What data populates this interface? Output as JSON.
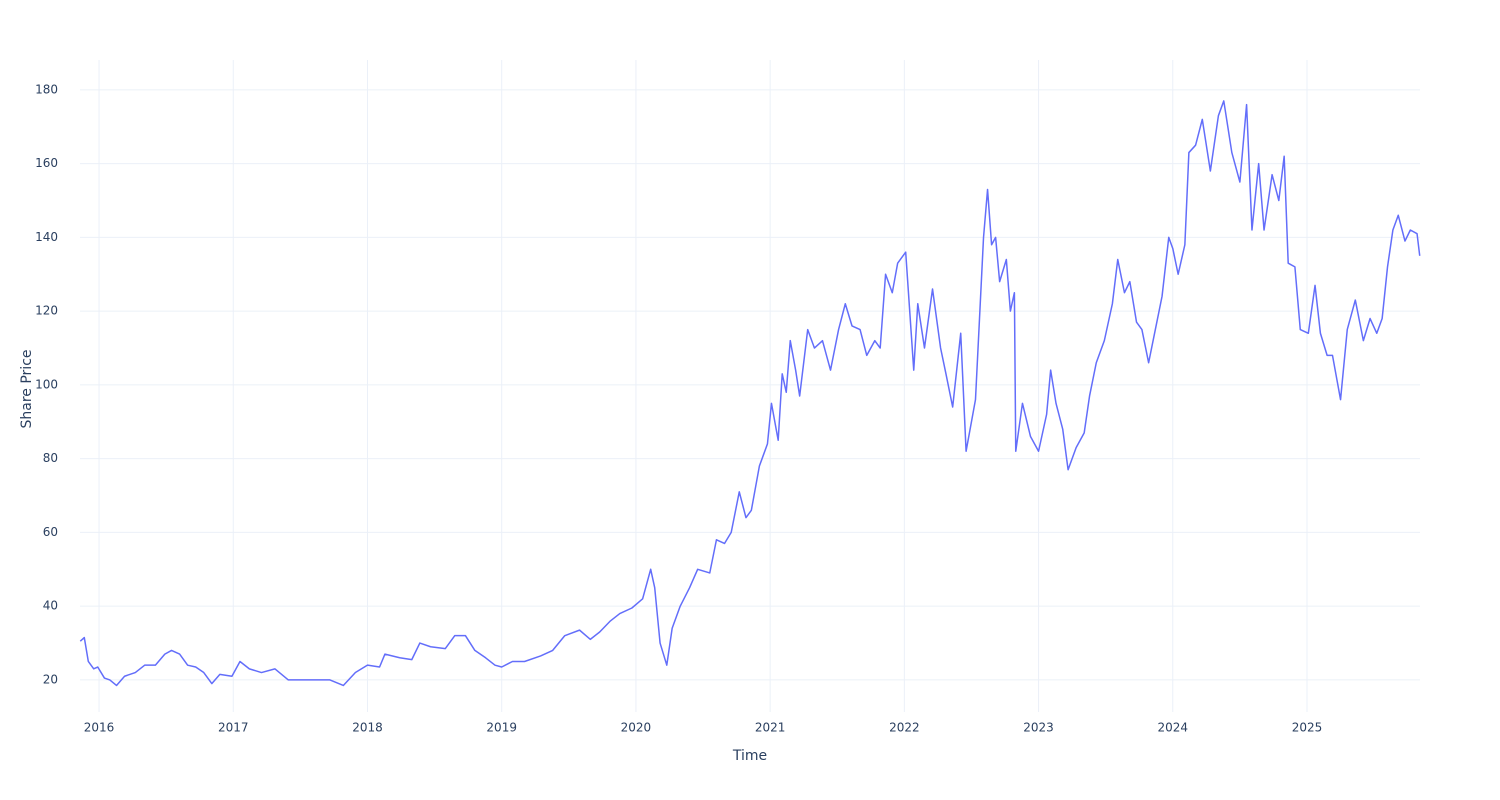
{
  "chart_data": {
    "type": "line",
    "xlabel": "Time",
    "ylabel": "Share Price",
    "x": [
      2015.86,
      2015.89,
      2015.92,
      2015.96,
      2015.99,
      2016.04,
      2016.08,
      2016.13,
      2016.19,
      2016.27,
      2016.34,
      2016.42,
      2016.49,
      2016.54,
      2016.6,
      2016.66,
      2016.72,
      2016.78,
      2016.84,
      2016.9,
      2016.99,
      2017.05,
      2017.12,
      2017.21,
      2017.31,
      2017.41,
      2017.5,
      2017.61,
      2017.72,
      2017.82,
      2017.91,
      2018.0,
      2018.09,
      2018.13,
      2018.24,
      2018.33,
      2018.39,
      2018.47,
      2018.58,
      2018.65,
      2018.73,
      2018.8,
      2018.88,
      2018.95,
      2019.0,
      2019.08,
      2019.17,
      2019.29,
      2019.38,
      2019.47,
      2019.58,
      2019.66,
      2019.73,
      2019.81,
      2019.88,
      2019.97,
      2020.05,
      2020.11,
      2020.14,
      2020.18,
      2020.23,
      2020.27,
      2020.33,
      2020.4,
      2020.46,
      2020.55,
      2020.6,
      2020.66,
      2020.71,
      2020.77,
      2020.82,
      2020.86,
      2020.92,
      2020.98,
      2021.01,
      2021.06,
      2021.09,
      2021.12,
      2021.15,
      2021.19,
      2021.22,
      2021.28,
      2021.33,
      2021.39,
      2021.45,
      2021.51,
      2021.56,
      2021.61,
      2021.67,
      2021.72,
      2021.78,
      2021.82,
      2021.86,
      2021.91,
      2021.95,
      2022.01,
      2022.04,
      2022.07,
      2022.1,
      2022.15,
      2022.21,
      2022.27,
      2022.31,
      2022.36,
      2022.42,
      2022.46,
      2022.51,
      2022.53,
      2022.56,
      2022.59,
      2022.62,
      2022.65,
      2022.68,
      2022.71,
      2022.76,
      2022.79,
      2022.82,
      2022.83,
      2022.88,
      2022.94,
      2023.0,
      2023.06,
      2023.09,
      2023.13,
      2023.18,
      2023.22,
      2023.28,
      2023.34,
      2023.38,
      2023.43,
      2023.49,
      2023.55,
      2023.59,
      2023.64,
      2023.68,
      2023.73,
      2023.77,
      2023.82,
      2023.87,
      2023.92,
      2023.97,
      2024.0,
      2024.04,
      2024.09,
      2024.12,
      2024.17,
      2024.22,
      2024.28,
      2024.34,
      2024.38,
      2024.44,
      2024.5,
      2024.55,
      2024.59,
      2024.64,
      2024.68,
      2024.74,
      2024.79,
      2024.83,
      2024.86,
      2024.91,
      2024.95,
      2025.01,
      2025.06,
      2025.1,
      2025.15,
      2025.19,
      2025.25,
      2025.3,
      2025.36,
      2025.42,
      2025.47,
      2025.52,
      2025.56,
      2025.6,
      2025.64,
      2025.68,
      2025.73,
      2025.77,
      2025.82,
      2025.84
    ],
    "series": [
      {
        "color": "#636efa",
        "values": [
          30.5,
          31.5,
          25,
          23,
          23.5,
          20.5,
          20,
          18.5,
          21,
          22,
          24,
          24,
          27,
          28,
          27,
          24,
          23.5,
          22,
          19,
          21.5,
          21,
          25,
          23,
          22,
          23,
          20,
          20,
          20,
          20,
          18.5,
          22,
          24,
          23.5,
          27,
          26,
          25.5,
          30,
          29,
          28.5,
          32,
          32,
          28,
          26,
          24,
          23.5,
          25,
          25,
          26.5,
          28,
          32,
          33.5,
          31,
          33,
          36,
          38,
          39.5,
          42,
          50,
          45,
          30,
          24,
          34,
          40,
          45,
          50,
          49,
          58,
          57,
          60,
          71,
          64,
          66,
          78,
          84,
          95,
          85,
          103,
          98,
          112,
          104,
          97,
          115,
          110,
          112,
          104,
          115,
          122,
          116,
          115,
          108,
          112,
          110,
          130,
          125,
          133,
          136,
          120,
          104,
          122,
          110,
          126,
          110,
          103,
          94,
          114,
          82,
          92,
          96,
          118,
          140,
          153,
          138,
          140,
          128,
          134,
          120,
          125,
          82,
          95,
          86,
          82,
          92,
          104,
          95,
          88,
          77,
          83,
          87,
          97,
          106,
          112,
          122,
          134,
          125,
          128,
          117,
          115,
          106,
          115,
          124,
          140,
          137,
          130,
          138,
          163,
          165,
          172,
          158,
          173,
          177,
          163,
          155,
          176,
          142,
          160,
          142,
          157,
          150,
          162,
          133,
          132,
          115,
          114,
          127,
          114,
          108,
          108,
          96,
          115,
          123,
          112,
          118,
          114,
          118,
          132,
          142,
          146,
          139,
          142,
          141,
          135
        ]
      }
    ],
    "xlim": [
      2015.858,
      2025.842
    ],
    "xticks": [
      2016,
      2017,
      2018,
      2019,
      2020,
      2021,
      2022,
      2023,
      2024,
      2025
    ],
    "ylim": [
      11.3,
      188.1
    ],
    "yticks": [
      20,
      40,
      60,
      80,
      100,
      120,
      140,
      160,
      180
    ],
    "grid": true
  }
}
